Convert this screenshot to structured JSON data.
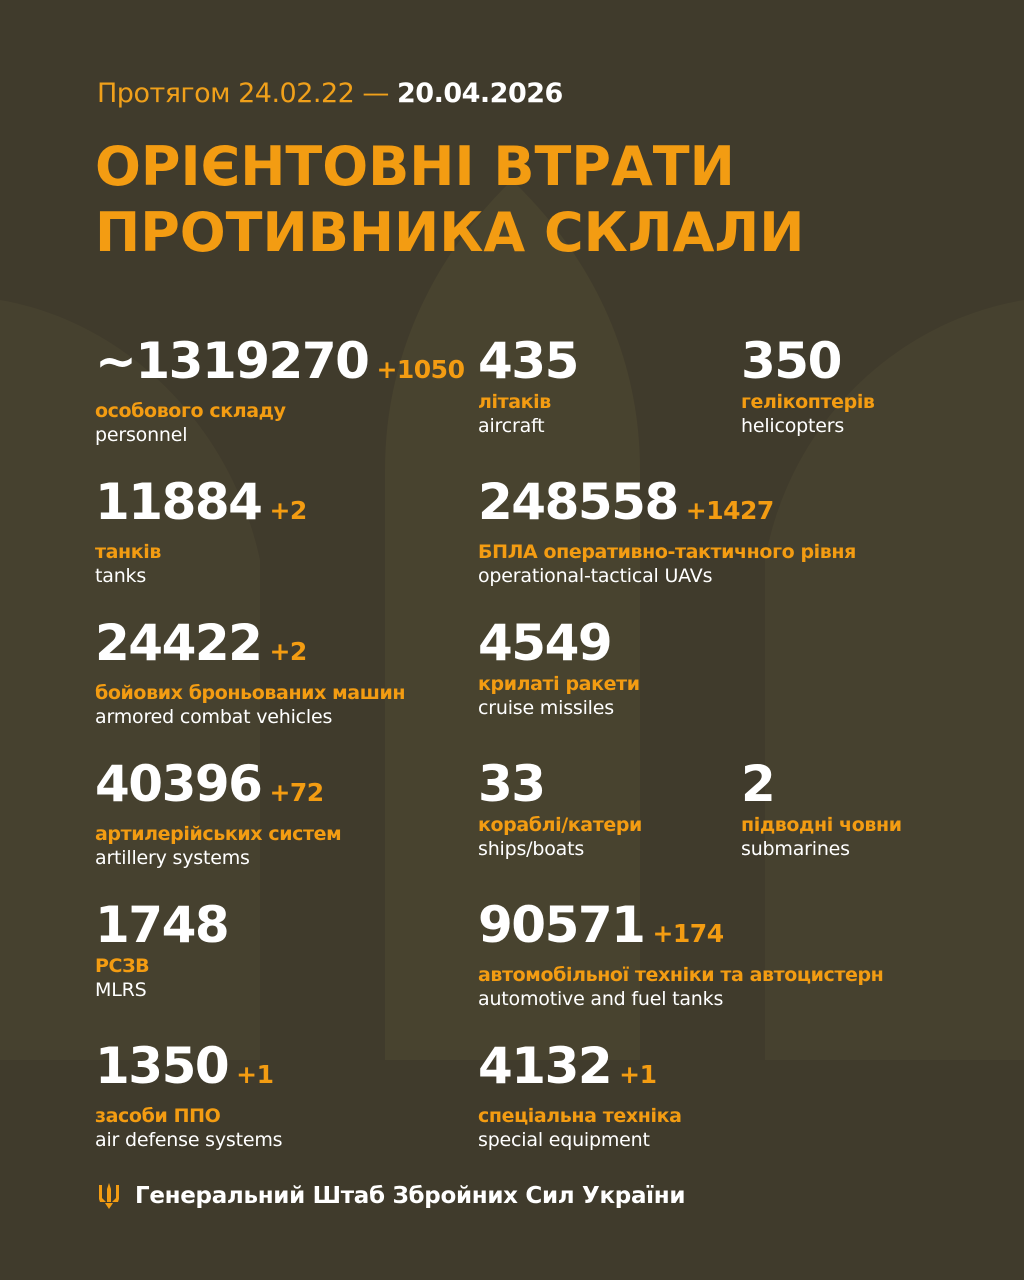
{
  "header": {
    "period_prefix": "Протягом 24.02.22 —",
    "period_end": "20.04.2026",
    "title_line1": "ОРІЄНТОВНІ ВТРАТИ",
    "title_line2": "ПРОТИВНИКА СКЛАЛИ"
  },
  "stats": [
    {
      "value": "~1319270",
      "delta": "+1050",
      "ua": "особового складу",
      "en": "personnel"
    },
    {
      "value": "435",
      "delta": "",
      "ua": "літаків",
      "en": "aircraft"
    },
    {
      "value": "350",
      "delta": "",
      "ua": "гелікоптерів",
      "en": "helicopters"
    },
    {
      "value": "11884",
      "delta": "+2",
      "ua": "танків",
      "en": "tanks"
    },
    {
      "value": "248558",
      "delta": "+1427",
      "ua": "БПЛА оперативно-тактичного рівня",
      "en": "operational-tactical UAVs"
    },
    {
      "value": "24422",
      "delta": "+2",
      "ua": "бойових броньованих машин",
      "en": "armored combat vehicles"
    },
    {
      "value": "4549",
      "delta": "",
      "ua": "крилаті ракети",
      "en": "cruise missiles"
    },
    {
      "value": "40396",
      "delta": "+72",
      "ua": "артилерійських систем",
      "en": "artillery systems"
    },
    {
      "value": "33",
      "delta": "",
      "ua": "кораблі/катери",
      "en": "ships/boats"
    },
    {
      "value": "2",
      "delta": "",
      "ua": "підводні човни",
      "en": "submarines"
    },
    {
      "value": "1748",
      "delta": "",
      "ua": "РСЗВ",
      "en": "MLRS"
    },
    {
      "value": "90571",
      "delta": "+174",
      "ua": "автомобільної техніки та автоцистерн",
      "en": "automotive and fuel tanks"
    },
    {
      "value": "1350",
      "delta": "+1",
      "ua": "засоби ППО",
      "en": "air defense systems"
    },
    {
      "value": "4132",
      "delta": "+1",
      "ua": "спеціальна техніка",
      "en": "special equipment"
    }
  ],
  "footer": {
    "org": "Генеральний Штаб Збройних Сил України",
    "icon": "trident-icon"
  },
  "colors": {
    "background": "#403b2c",
    "accent": "#f39c12",
    "text": "#ffffff"
  }
}
